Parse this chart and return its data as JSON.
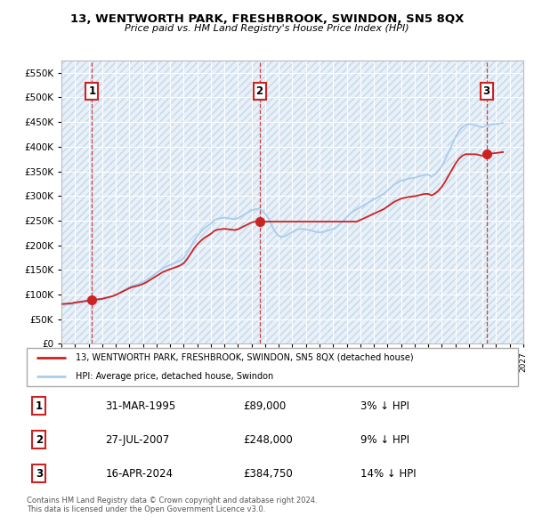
{
  "title": "13, WENTWORTH PARK, FRESHBROOK, SWINDON, SN5 8QX",
  "subtitle": "Price paid vs. HM Land Registry's House Price Index (HPI)",
  "ytick_values": [
    0,
    50000,
    100000,
    150000,
    200000,
    250000,
    300000,
    350000,
    400000,
    450000,
    500000,
    550000
  ],
  "xlim_years": [
    1993.0,
    2027.0
  ],
  "ylim": [
    0,
    575000
  ],
  "sale_points": [
    {
      "year": 1995.25,
      "price": 89000,
      "label": "1"
    },
    {
      "year": 2007.58,
      "price": 248000,
      "label": "2"
    },
    {
      "year": 2024.29,
      "price": 384750,
      "label": "3"
    }
  ],
  "hpi_line_color": "#aaccee",
  "sale_line_color": "#cc2222",
  "vline_color": "#cc2222",
  "dot_color": "#cc2222",
  "label_box_color": "#cc2222",
  "chart_bg_color": "#e8f0f8",
  "grid_color": "#ffffff",
  "legend_entries": [
    "13, WENTWORTH PARK, FRESHBROOK, SWINDON, SN5 8QX (detached house)",
    "HPI: Average price, detached house, Swindon"
  ],
  "table_rows": [
    [
      "1",
      "31-MAR-1995",
      "£89,000",
      "3% ↓ HPI"
    ],
    [
      "2",
      "27-JUL-2007",
      "£248,000",
      "9% ↓ HPI"
    ],
    [
      "3",
      "16-APR-2024",
      "£384,750",
      "14% ↓ HPI"
    ]
  ],
  "footnote": "Contains HM Land Registry data © Crown copyright and database right 2024.\nThis data is licensed under the Open Government Licence v3.0.",
  "hpi_data": {
    "years": [
      1993.0,
      1993.25,
      1993.5,
      1993.75,
      1994.0,
      1994.25,
      1994.5,
      1994.75,
      1995.0,
      1995.25,
      1995.5,
      1995.75,
      1996.0,
      1996.25,
      1996.5,
      1996.75,
      1997.0,
      1997.25,
      1997.5,
      1997.75,
      1998.0,
      1998.25,
      1998.5,
      1998.75,
      1999.0,
      1999.25,
      1999.5,
      1999.75,
      2000.0,
      2000.25,
      2000.5,
      2000.75,
      2001.0,
      2001.25,
      2001.5,
      2001.75,
      2002.0,
      2002.25,
      2002.5,
      2002.75,
      2003.0,
      2003.25,
      2003.5,
      2003.75,
      2004.0,
      2004.25,
      2004.5,
      2004.75,
      2005.0,
      2005.25,
      2005.5,
      2005.75,
      2006.0,
      2006.25,
      2006.5,
      2006.75,
      2007.0,
      2007.25,
      2007.5,
      2007.75,
      2008.0,
      2008.25,
      2008.5,
      2008.75,
      2009.0,
      2009.25,
      2009.5,
      2009.75,
      2010.0,
      2010.25,
      2010.5,
      2010.75,
      2011.0,
      2011.25,
      2011.5,
      2011.75,
      2012.0,
      2012.25,
      2012.5,
      2012.75,
      2013.0,
      2013.25,
      2013.5,
      2013.75,
      2014.0,
      2014.25,
      2014.5,
      2014.75,
      2015.0,
      2015.25,
      2015.5,
      2015.75,
      2016.0,
      2016.25,
      2016.5,
      2016.75,
      2017.0,
      2017.25,
      2017.5,
      2017.75,
      2018.0,
      2018.25,
      2018.5,
      2018.75,
      2019.0,
      2019.25,
      2019.5,
      2019.75,
      2020.0,
      2020.25,
      2020.5,
      2020.75,
      2021.0,
      2021.25,
      2021.5,
      2021.75,
      2022.0,
      2022.25,
      2022.5,
      2022.75,
      2023.0,
      2023.25,
      2023.5,
      2023.75,
      2024.0,
      2024.25,
      2024.5,
      2024.75,
      2025.0,
      2025.25,
      2025.5
    ],
    "values": [
      79000,
      79500,
      80000,
      80500,
      82000,
      83000,
      84000,
      85000,
      86000,
      87000,
      88000,
      89000,
      90000,
      92000,
      94000,
      96000,
      99000,
      103000,
      107000,
      111000,
      115000,
      118000,
      120000,
      122000,
      125000,
      129000,
      134000,
      139000,
      144000,
      149000,
      154000,
      157000,
      160000,
      163000,
      166000,
      169000,
      174000,
      184000,
      196000,
      209000,
      219000,
      227000,
      234000,
      239000,
      244000,
      251000,
      254000,
      255000,
      256000,
      255000,
      254000,
      253000,
      255000,
      259000,
      263000,
      267000,
      271000,
      273000,
      274000,
      271000,
      264000,
      254000,
      239000,
      227000,
      219000,
      217000,
      219000,
      223000,
      227000,
      231000,
      233000,
      233000,
      232000,
      231000,
      229000,
      227000,
      226000,
      227000,
      229000,
      231000,
      233000,
      237000,
      243000,
      249000,
      257000,
      264000,
      269000,
      273000,
      277000,
      281000,
      285000,
      289000,
      293000,
      297000,
      301000,
      305000,
      311000,
      317000,
      323000,
      327000,
      331000,
      333000,
      335000,
      336000,
      337000,
      339000,
      341000,
      343000,
      343000,
      339000,
      344000,
      351000,
      361000,
      374000,
      389000,
      404000,
      419000,
      431000,
      439000,
      444000,
      446000,
      445000,
      443000,
      441000,
      439000,
      443000,
      444000,
      445000,
      446000,
      447000,
      448000
    ]
  }
}
